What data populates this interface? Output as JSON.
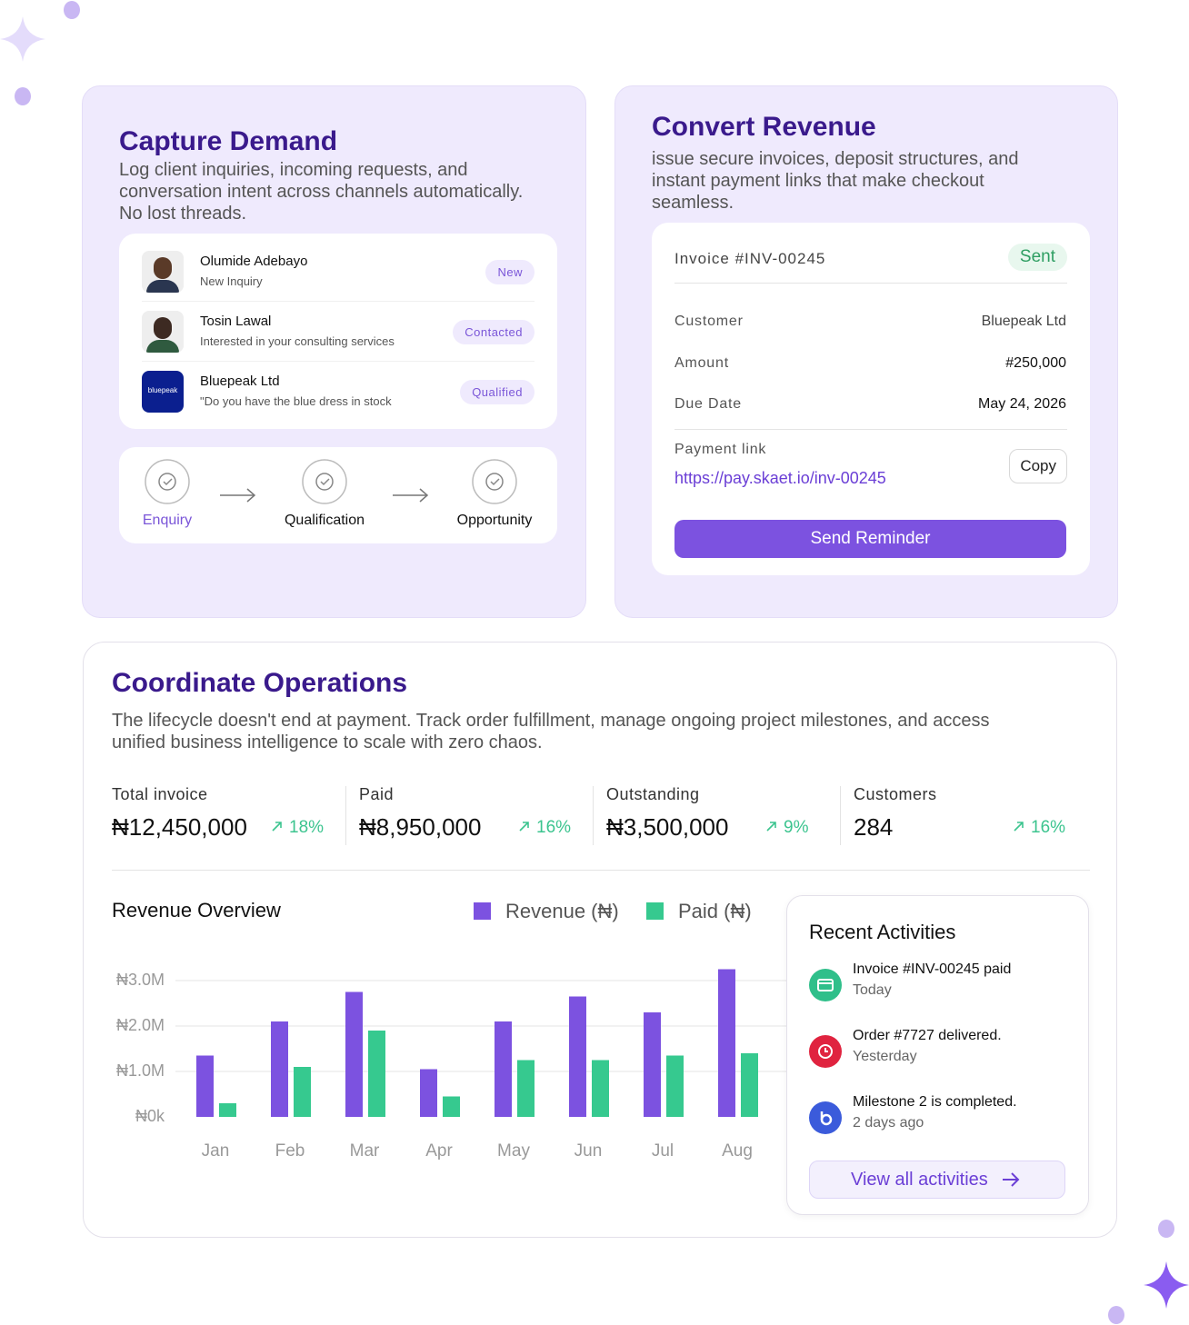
{
  "capture": {
    "title": "Capture Demand",
    "description": [
      "Log client inquiries, incoming requests, and",
      "conversation intent across channels automatically.",
      "No lost threads."
    ],
    "leads": [
      {
        "name": "Olumide Adebayo",
        "subtitle": "New Inquiry",
        "status": "New"
      },
      {
        "name": "Tosin Lawal",
        "subtitle": "Interested in your consulting services",
        "status": "Contacted"
      },
      {
        "name": "Bluepeak Ltd",
        "subtitle": "\"Do you have the blue dress in stock",
        "status": "Qualified",
        "logo_text": "bluepeak"
      }
    ],
    "pipeline": [
      "Enquiry",
      "Qualification",
      "Opportunity"
    ]
  },
  "convert": {
    "title": "Convert Revenue",
    "description": [
      "issue secure invoices, deposit structures, and",
      "instant payment links that make checkout",
      "seamless."
    ],
    "invoice": {
      "number": "Invoice #INV-00245",
      "status": "Sent",
      "rows": [
        {
          "label": "Customer",
          "value": "Bluepeak Ltd"
        },
        {
          "label": "Amount",
          "value": "#250,000"
        },
        {
          "label": "Due Date",
          "value": "May 24, 2026"
        }
      ],
      "payment_link_label": "Payment link",
      "payment_link": "https://pay.skaet.io/inv-00245",
      "copy_button": "Copy",
      "button": "Send Reminder"
    }
  },
  "operations": {
    "title": "Coordinate Operations",
    "description": [
      "The lifecycle doesn't end at payment. Track order fulfillment, manage ongoing project milestones, and access",
      "unified business intelligence to scale with zero chaos."
    ],
    "stats": [
      {
        "label": "Total invoice",
        "value": "₦12,450,000",
        "change": "18%"
      },
      {
        "label": "Paid",
        "value": "₦8,950,000",
        "change": "16%"
      },
      {
        "label": "Outstanding",
        "value": "₦3,500,000",
        "change": "9%"
      },
      {
        "label": "Customers",
        "value": "284",
        "change": "16%"
      }
    ],
    "activities": {
      "title": "Recent Activities",
      "items": [
        {
          "text": "Invoice #INV-00245 paid",
          "time": "Today",
          "color": "#2fbf8a"
        },
        {
          "text": "Order #7727 delivered.",
          "time": "Yesterday",
          "color": "#e0233f"
        },
        {
          "text": "Milestone 2 is completed.",
          "time": "2 days ago",
          "color": "#3b5bdb"
        }
      ],
      "button": "View all activities"
    }
  },
  "chart_data": {
    "type": "bar",
    "title": "Revenue Overview",
    "categories": [
      "Jan",
      "Feb",
      "Mar",
      "Apr",
      "May",
      "Jun",
      "Jul",
      "Aug"
    ],
    "series": [
      {
        "name": "Revenue (₦)",
        "color": "#7c52e0",
        "values": [
          1350000,
          2100000,
          2750000,
          1050000,
          2100000,
          2650000,
          2300000,
          3250000
        ]
      },
      {
        "name": "Paid (₦)",
        "color": "#36c98f",
        "values": [
          300000,
          1100000,
          1900000,
          450000,
          1250000,
          1250000,
          1350000,
          1400000
        ]
      }
    ],
    "ylim": [
      0,
      3500000
    ],
    "yticks": [
      {
        "value": 0,
        "label": "₦0k"
      },
      {
        "value": 1000000,
        "label": "₦1.0M"
      },
      {
        "value": 2000000,
        "label": "₦2.0M"
      },
      {
        "value": 3000000,
        "label": "₦3.0M"
      }
    ],
    "grid": true
  }
}
